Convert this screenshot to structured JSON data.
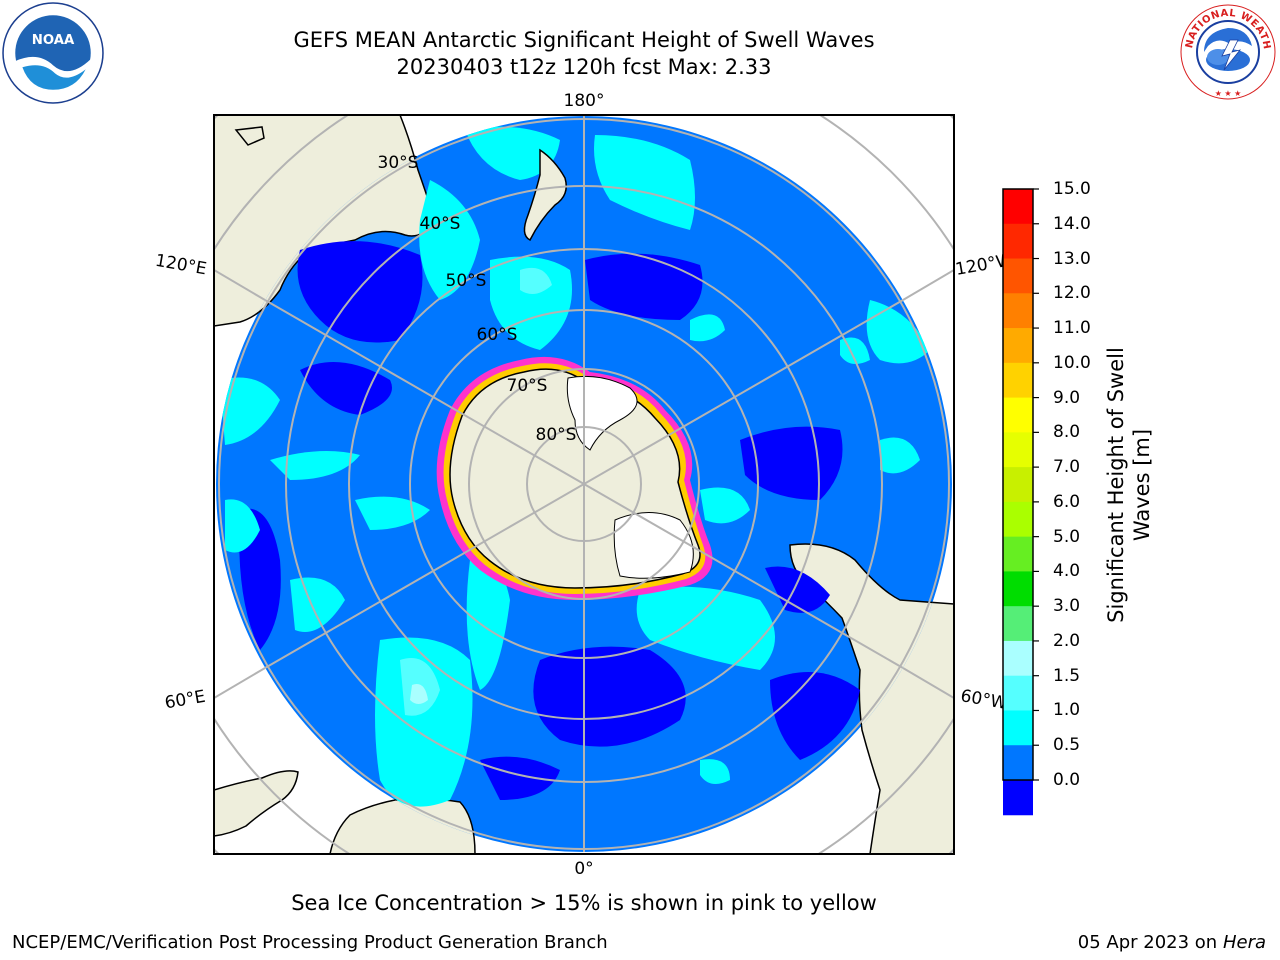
{
  "title": {
    "line1": "GEFS MEAN Antarctic Significant Height of Swell Waves",
    "line2": "20230403 t12z 120h fcst   Max: 2.33"
  },
  "map": {
    "projection": "south polar stereographic",
    "meridian_labels": {
      "top": "180°",
      "bottom": "0°",
      "upper_left": "120°E",
      "upper_right": "120°W",
      "lower_left": "60°E",
      "lower_right": "60°W"
    },
    "latitude_labels": [
      "30°S",
      "40°S",
      "50°S",
      "60°S",
      "70°S",
      "80°S"
    ],
    "colors": {
      "land": "#eeeedc",
      "ice_edge": "#ff33cc",
      "ice_edge_inner": "#ffcc00",
      "grid": "#b3b3b3"
    }
  },
  "colorbar": {
    "label": "Significant Height of Swell Waves [m]",
    "ticks": [
      "15.0",
      "14.0",
      "13.0",
      "12.0",
      "11.0",
      "10.0",
      "9.0",
      "8.0",
      "7.0",
      "6.0",
      "5.0",
      "4.0",
      "3.0",
      "2.0",
      "1.5",
      "1.0",
      "0.5",
      "0.0"
    ],
    "colors_top_to_bottom": [
      "#ff0000",
      "#ff2800",
      "#ff5500",
      "#ff8000",
      "#ffaa00",
      "#ffd200",
      "#ffff00",
      "#e6ff00",
      "#c8f000",
      "#aaff00",
      "#66ee22",
      "#00dd00",
      "#55ee77",
      "#aaffff",
      "#55ffff",
      "#00ffff",
      "#0077ff",
      "#0000ff"
    ]
  },
  "caption": "Sea Ice Concentration > 15% is shown in pink to yellow",
  "footer": {
    "left": "NCEP/EMC/Verification Post Processing Product Generation Branch",
    "date": "05 Apr 2023 on ",
    "host": "Hera"
  }
}
